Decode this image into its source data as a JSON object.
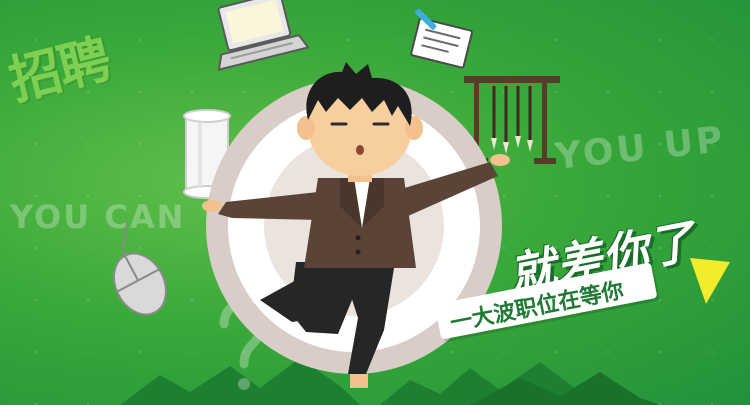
{
  "banner": {
    "headline": "招聘",
    "slogan": "就差你了",
    "subtitle": "一大波职位在等你",
    "bg_text_left": "YOU CAN",
    "bg_text_right": "YOU UP"
  },
  "illustration": {
    "character": "businessman",
    "props": [
      "laptop-icon",
      "document-pen-icon",
      "scroll-icon",
      "brush-rack-icon",
      "mouse-icon",
      "question-mark"
    ]
  },
  "colors": {
    "background": "#3aa83a",
    "headline": "#7fd052",
    "accent_yellow": "#f4ec2b",
    "text_white": "#ffffff"
  }
}
